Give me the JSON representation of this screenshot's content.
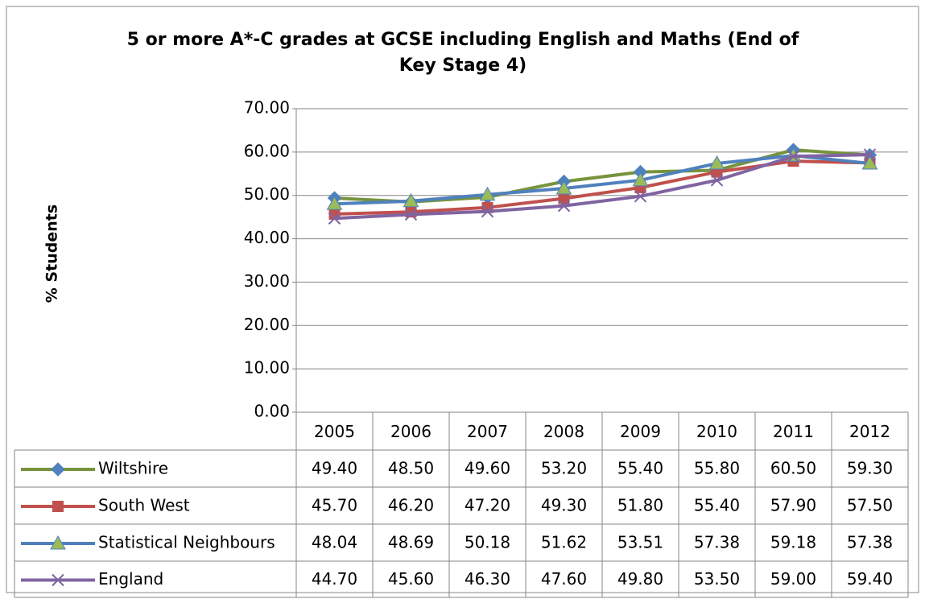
{
  "chart_data": {
    "type": "line",
    "title": "5 or more A*-C grades at GCSE including English and Maths (End of Key Stage 4)",
    "y_label": "% Students",
    "categories": [
      "2005",
      "2006",
      "2007",
      "2008",
      "2009",
      "2010",
      "2011",
      "2012"
    ],
    "ylim": [
      0,
      70
    ],
    "yticks": [
      {
        "value": 0,
        "label": "0.00"
      },
      {
        "value": 10,
        "label": "10.00"
      },
      {
        "value": 20,
        "label": "20.00"
      },
      {
        "value": 30,
        "label": "30.00"
      },
      {
        "value": 40,
        "label": "40.00"
      },
      {
        "value": 50,
        "label": "50.00"
      },
      {
        "value": 60,
        "label": "60.00"
      },
      {
        "value": 70,
        "label": "70.00"
      }
    ],
    "grid": true,
    "series": [
      {
        "name": "Wiltshire",
        "color": "#77933c",
        "marker": "diamond",
        "marker_color": "#4f81bd",
        "values": [
          49.4,
          48.5,
          49.6,
          53.2,
          55.4,
          55.8,
          60.5,
          59.3
        ],
        "value_labels": [
          "49.40",
          "48.50",
          "49.60",
          "53.20",
          "55.40",
          "55.80",
          "60.50",
          "59.30"
        ]
      },
      {
        "name": "South West",
        "color": "#c0504d",
        "marker": "square",
        "marker_color": "#c0504d",
        "values": [
          45.7,
          46.2,
          47.2,
          49.3,
          51.8,
          55.4,
          57.9,
          57.5
        ],
        "value_labels": [
          "45.70",
          "46.20",
          "47.20",
          "49.30",
          "51.80",
          "55.40",
          "57.90",
          "57.50"
        ]
      },
      {
        "name": "Statistical Neighbours",
        "color": "#4f81bd",
        "marker": "triangle",
        "marker_color": "#9bbb59",
        "values": [
          48.04,
          48.69,
          50.18,
          51.62,
          53.51,
          57.38,
          59.18,
          57.38
        ]
      },
      {
        "name": "England",
        "color": "#8064a2",
        "marker": "x",
        "marker_color": "#8064a2",
        "values": [
          44.7,
          45.6,
          46.3,
          47.6,
          49.8,
          53.5,
          59.0,
          59.4
        ],
        "value_labels": [
          "44.70",
          "45.60",
          "46.30",
          "47.60",
          "49.80",
          "53.50",
          "59.00",
          "59.40"
        ]
      }
    ]
  }
}
